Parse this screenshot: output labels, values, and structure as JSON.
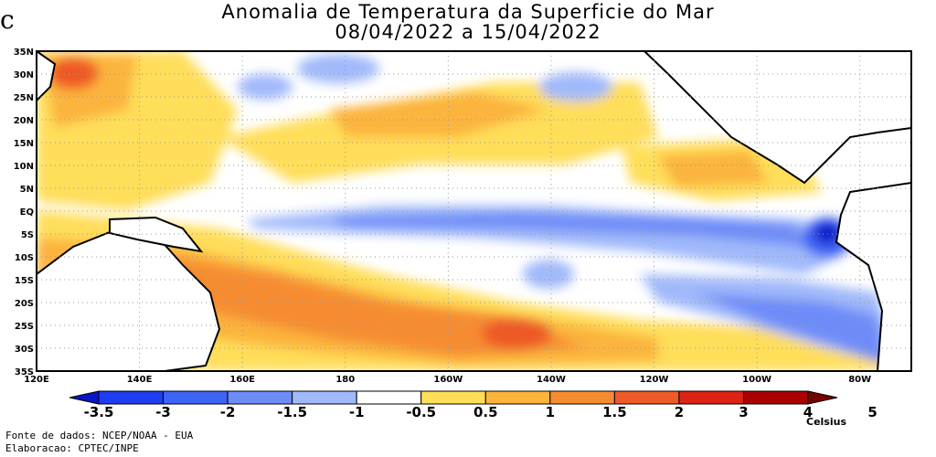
{
  "title": {
    "line1": "Anomalia de Temperatura da Superficie do Mar",
    "line2": "08/04/2022 a 15/04/2022"
  },
  "edge_glyph": "c",
  "map": {
    "lat_labels": [
      "35N",
      "30N",
      "25N",
      "20N",
      "15N",
      "10N",
      "5N",
      "EQ",
      "5S",
      "10S",
      "15S",
      "20S",
      "25S",
      "30S",
      "35S"
    ],
    "lat_values": [
      35,
      30,
      25,
      20,
      15,
      10,
      5,
      0,
      -5,
      -10,
      -15,
      -20,
      -25,
      -30,
      -35
    ],
    "lon_labels": [
      "120E",
      "140E",
      "160E",
      "180",
      "160W",
      "140W",
      "120W",
      "100W",
      "80W"
    ],
    "lon_values": [
      120,
      140,
      160,
      180,
      200,
      220,
      240,
      260,
      280
    ],
    "lon_range": [
      120,
      290
    ],
    "lat_range": [
      -35,
      35
    ]
  },
  "colorbar": {
    "levels": [
      "-3.5",
      "-3",
      "-2",
      "-1.5",
      "-1",
      "-0.5",
      "0.5",
      "1",
      "1.5",
      "2",
      "3",
      "4",
      "5"
    ],
    "colors": [
      "#0a14c8",
      "#1e3cf0",
      "#3c64f5",
      "#6e8cf8",
      "#a0b9fa",
      "#ffffff",
      "#ffde5a",
      "#fbb43c",
      "#f68c32",
      "#ee5a28",
      "#dc2314",
      "#aa0000",
      "#780000"
    ],
    "units": "Celsius"
  },
  "footer": {
    "source": "Fonte de dados: NCEP/NOAA - EUA",
    "elaboration": "Elaboracao: CPTEC/INPE"
  }
}
